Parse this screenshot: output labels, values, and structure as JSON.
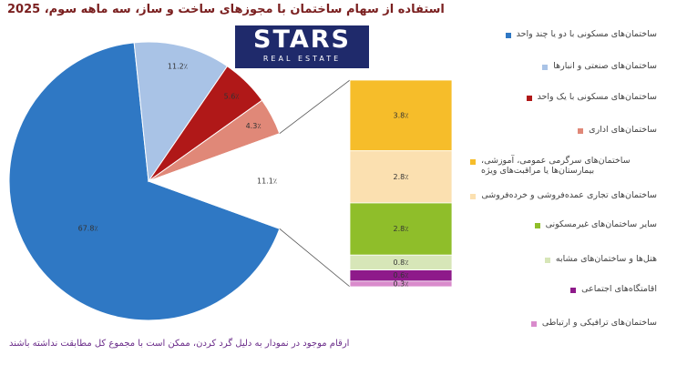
{
  "logo": {
    "line1": "STARS",
    "line2": "REAL ESTATE"
  },
  "chart_data": {
    "type": "pie-of-bar",
    "title": "استفاده از سهام ساختمان با مجوزهای ساخت و ساز، سه ماهه سوم، 2025",
    "footnote": "ارقام موجود در نمودار به دلیل گرد کردن، ممکن است با مجموع کل مطابقت نداشته باشند",
    "pie": {
      "categories": [
        "ساختمان‌های مسکونی با دو یا چند واحد",
        "ساختمان‌های صنعتی و انبارها",
        "ساختمان‌های مسکونی با یک واحد",
        "ساختمان‌های اداری",
        null
      ],
      "values": [
        67.8,
        11.2,
        5.6,
        4.3,
        11.1
      ],
      "value_labels": [
        "67.8٪",
        "11.2٪",
        "5.6٪",
        "4.3٪",
        "11.1٪"
      ],
      "colors": [
        "#2f78c4",
        "#a9c3e6",
        "#b01818",
        "#e08878",
        "#ffffff"
      ]
    },
    "bar": {
      "categories": [
        "ساختمان‌های سرگرمی عمومی، آموزشی، بیمارستان‌ها یا مراقبت‌های ویژه",
        "ساختمان‌های تجاری عمده‌فروشی و خرده‌فروشی",
        "سایر ساختمان‌های غیرمسکونی",
        "هتل‌ها و ساختمان‌های مشابه",
        "اقامتگاه‌های اجتماعی",
        "ساختمان‌های ترافیکی و ارتباطی"
      ],
      "values": [
        3.8,
        2.8,
        2.8,
        0.8,
        0.6,
        0.3
      ],
      "value_labels": [
        "3.8٪",
        "2.8٪",
        "2.8٪",
        "0.8٪",
        "0.6٪",
        "0.3٪"
      ],
      "colors": [
        "#f6bd2a",
        "#fbe0b0",
        "#8fbe2a",
        "#d7e6b8",
        "#8e1a8a",
        "#d98bcc"
      ]
    }
  }
}
